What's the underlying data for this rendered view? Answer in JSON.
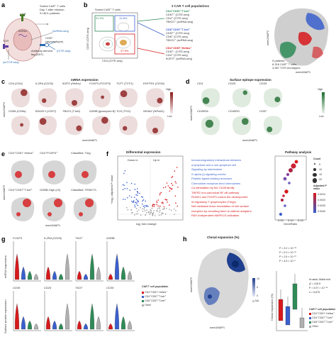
{
  "panels": {
    "a": {
      "label": "a",
      "infusion_lines": [
        "Sorted CAR⁺ T cells",
        "Day 7 after infusion",
        "9 LBCL patients"
      ],
      "car": "CAR",
      "mrna": "mRNA",
      "tcr": "TCR",
      "sctcr_seq": "(scTCR-seq)",
      "scrna_seq": "(scRNA-seq)",
      "cd57": "CD57",
      "glycoepitope": "(glycoepitope)",
      "adt_lines": [
        "Antibody-derived",
        "tag (ADT)"
      ],
      "cite_seq": "(CITE-seq)"
    },
    "b": {
      "label": "b",
      "header": "3 CAR T cell populations",
      "sorted": "Sorted CAR⁺ T cells",
      "gate1": "31.9%",
      "gate2": "12.8%",
      "gate3": "37.9%",
      "xaxis": "CD4 (CITE-seq)",
      "yaxis": "CD57 (CITE-seq)",
      "pop1": [
        "CD4⁺CD57⁺T-bet⁺",
        "CD57⁺ (CITE-seq)",
        "CD4⁺ (CITE-seq)",
        "TBX21⁺ (scRNA-seq)"
      ],
      "pop2": [
        "CD8⁺CD57⁺T-bet⁺",
        "CD57⁺ (CITE-seq)",
        "CD8⁺ (CITE-seq)",
        "TBX21⁺ (scRNA-seq)"
      ],
      "pop3": [
        "CD4⁺CD57⁻Helios⁺",
        "CD57⁻ (CITE-seq)",
        "CD4⁺ (CITE-seq)",
        "IKZF2⁺ (scRNA-seq)"
      ],
      "umap_x": "wnnUMAP1",
      "umap_y": "wnnUMAP2",
      "summary": [
        "9 patients",
        "6,316 CAR⁺ T cells",
        "4,387 TCR clonotypes"
      ]
    },
    "c": {
      "label": "c",
      "title": "mRNA expression",
      "genes_row1": [
        "CD4 (CD4)",
        "IL2RA (CD25)",
        "IKZF2 (Helios)",
        "FOXP3 (FOXP3)",
        "TCF7 (TCF1)",
        "ENTPD1 (CD39)"
      ],
      "genes_row2": [
        "CD8A (CD8α)",
        "B3GAT1 (CD57)",
        "TBX21 (T-bet)",
        "GZMB (granzyme B)",
        "TOX (TOX)",
        "NR4A2 (NR4A2)"
      ],
      "high": "High",
      "low": "Low",
      "xaxis": "wnnUMAP1",
      "yaxis": "wnnUMAP2"
    },
    "d": {
      "label": "d",
      "title": "Surface epitope expression",
      "row1": [
        "CD4",
        "CD25",
        "CD39"
      ],
      "row2": [
        "CD45RA",
        "CD45RO",
        "CD57"
      ],
      "high": "High",
      "low": "Low",
      "xaxis": "wnnUMAP1",
      "yaxis": "wnnUMAP2"
    },
    "e": {
      "label": "e",
      "row1": [
        "CD4⁺CD57⁻Helios⁺",
        "CD4⁺FOXP3⁺",
        "Classified: Treg"
      ],
      "row2": [
        "CD4⁺CD57⁺T-bet⁺",
        "GZMB-High (≥2)",
        "Classified: TEM/CTL"
      ],
      "xaxis": "wnnUMAP1",
      "yaxis": "wnnUMAP2"
    },
    "f": {
      "label": "f",
      "title": "Differential expression",
      "xaxis": "log₂ fold change",
      "yaxis": "−log₁₀ adjusted P value",
      "pathway_title": "Pathway analysis",
      "pathway_xaxis": "GeneRatio",
      "down": "Down in",
      "up": "Up in",
      "pathways": [
        "Immunoregulatory interactions between",
        "a lymphoid and a non-lymphoid cell",
        "Signaling by interleukins",
        "G alpha (i) signaling events",
        "Peptide ligand-binding receptors",
        "Chemokine receptors bind chemokines",
        "Co-stimulation by the CD28 family",
        "TNFR2 non-canonical NF-κB pathway",
        "RUNX1 and FOXP3 control the development",
        "of regulatory T lymphocytes (Tregs)",
        "Nef-mediated down modulation of cell surface",
        "receptors by recruiting them to clathrin adapters",
        "RAF-independent MAPK1/3 activation"
      ],
      "count_title": "Count",
      "counts": [
        "5",
        "10",
        "15",
        "20"
      ],
      "padj_title": "Adjusted P value",
      "padj": [
        "0.0010",
        "0.0020",
        "0.0030",
        "0.0040"
      ],
      "gene_ratio_ticks": [
        "0.05",
        "0.10",
        "0.15"
      ]
    },
    "g": {
      "label": "g",
      "row1": [
        "FOXP3",
        "IL2RA (CD25)",
        "TIGIT",
        "GZMB"
      ],
      "row2": [
        "CD39",
        "CD25",
        "TIGIT",
        "CD39"
      ],
      "y1": "mRNA expression",
      "y2": "Surface protein expression",
      "legend_title": "CAR T cell population",
      "legend": [
        "CD4⁺CD57⁻Helios⁺",
        "CD4⁺CD57⁺T-bet⁺",
        "CD8⁺CD57⁺T-bet⁺",
        "Other"
      ]
    },
    "h": {
      "label": "h",
      "title": "Clonal expansion (%)",
      "xaxis": "wnnUMAP1",
      "yaxis": "wnnUMAP2",
      "scale": [
        "10",
        "5",
        "0",
        "NA"
      ],
      "stats": [
        "P = 3.2 × 10⁻¹⁶",
        "P = 9.3 × 10⁻¹²",
        "P = 2.6 × 10⁻¹⁰",
        "P = 4.8 × 10⁻⁶"
      ],
      "kw": [
        "Kruskal–Wallis test",
        "χ² = 416.5",
        "P = 5.97 × 10⁻⁹²",
        "n = 5,875"
      ],
      "legend_title": "CAR T cell population",
      "legend": [
        "CD4⁺CD57⁻Helios⁺",
        "CD4⁺CD57⁺T-bet⁺",
        "CD8⁺CD57⁺T-bet⁺",
        "Other"
      ],
      "box_y": "Clonal expansion (%)"
    }
  },
  "colors": {
    "helios": "#d7191c",
    "cd4tbet": "#3a5fcd",
    "cd8tbet": "#2e8b57",
    "other": "#b0b0b0",
    "mrna_high": "#8b1a1a",
    "surface_high": "#1e6b2e",
    "clonal_high": "#1f3f8f"
  }
}
